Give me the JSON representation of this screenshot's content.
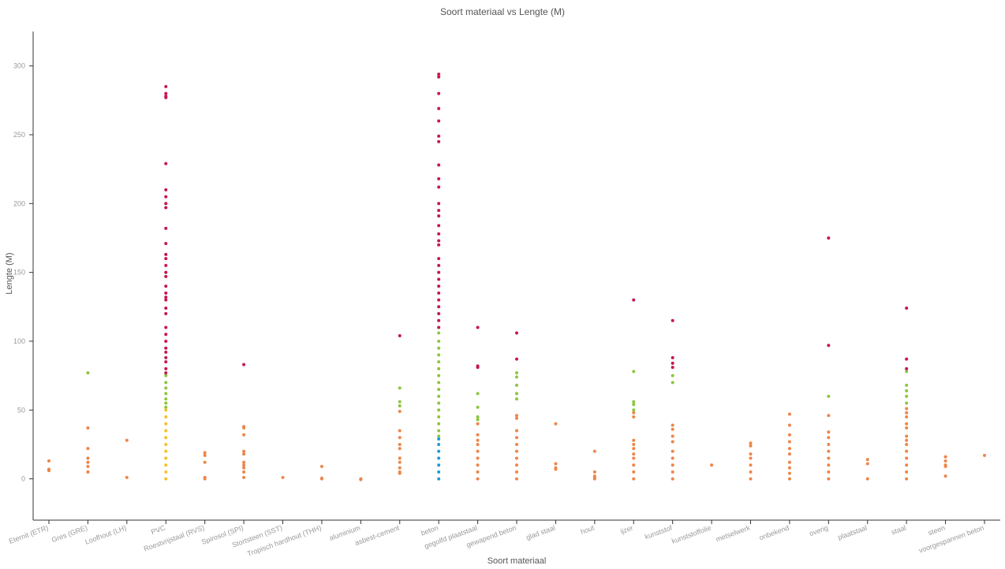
{
  "chart_data": {
    "type": "strip",
    "title": "Soort materiaal vs Lengte (M)",
    "x_label": "Soort materiaal",
    "y_label": "Lengte (M)",
    "categories": [
      "Eternit (ETR)",
      "Gres (GRE)",
      "Loofhout (LH)",
      "PVC",
      "Roestvrijstaal (RVS)",
      "Spirosol (SPI)",
      "Stortsteen (SST)",
      "Tropisch hardhout (THH)",
      "aluminium",
      "asbest-cement",
      "beton",
      "gegolfd plaatstaal",
      "gewapend beton",
      "glad staal",
      "hout",
      "ijzer",
      "kunststof",
      "kunststoffolie",
      "metselwerk",
      "onbekend",
      "overig",
      "plaatstaal",
      "staal",
      "steen",
      "voorgespannen beton"
    ],
    "ylim": [
      -30,
      325
    ],
    "yticks": [
      0,
      50,
      100,
      150,
      200,
      250,
      300
    ],
    "series": [
      {
        "color": "#ee8548",
        "values": [
          [
            13,
            7,
            6,
            6.5
          ],
          [
            37,
            22,
            15,
            12,
            9,
            5,
            5
          ],
          [
            28,
            1
          ],
          [],
          [
            19,
            17,
            12,
            1,
            0
          ],
          [
            38,
            37,
            32,
            20,
            18,
            12,
            10,
            8,
            5,
            1
          ],
          [
            1
          ],
          [
            9,
            0.5,
            0
          ],
          [
            0,
            -0.5
          ],
          [
            49,
            35,
            30,
            25,
            22,
            15,
            12,
            8,
            5,
            4
          ],
          [],
          [
            40,
            32,
            28,
            25,
            20,
            15,
            10,
            5,
            0
          ],
          [
            46,
            44,
            35,
            30,
            25,
            20,
            15,
            10,
            5,
            0
          ],
          [
            40,
            11,
            8,
            7
          ],
          [
            20,
            5,
            2,
            1,
            0
          ],
          [
            48,
            45,
            28,
            25,
            22,
            18,
            15,
            10,
            5,
            0
          ],
          [
            39,
            36,
            31,
            27,
            20,
            15,
            10,
            5,
            0
          ],
          [
            10
          ],
          [
            26,
            24,
            18,
            15,
            10,
            5,
            0
          ],
          [
            47,
            39,
            32,
            27,
            22,
            18,
            12,
            8,
            4,
            0
          ],
          [
            46,
            34,
            30,
            25,
            20,
            15,
            10,
            5,
            0
          ],
          [
            14,
            11,
            0
          ],
          [
            51,
            48,
            45,
            40,
            37,
            31,
            28,
            25,
            20,
            15,
            10,
            5,
            0
          ],
          [
            16,
            13,
            10,
            9,
            2
          ],
          [
            17
          ]
        ]
      },
      {
        "color": "#8cc63f",
        "values": [
          [],
          [
            77
          ],
          [],
          [
            75,
            70,
            66,
            62,
            58,
            55,
            52
          ],
          [],
          [],
          [],
          [],
          [],
          [
            66,
            56,
            53
          ],
          [
            106,
            100,
            95,
            90,
            85,
            80,
            75,
            70,
            65,
            60,
            55,
            50,
            45,
            40,
            35,
            31
          ],
          [
            62,
            52,
            45,
            43
          ],
          [
            77,
            74,
            68,
            62,
            58
          ],
          [],
          [],
          [
            78,
            56,
            54,
            50
          ],
          [
            75,
            70
          ],
          [],
          [],
          [],
          [
            60
          ],
          [],
          [
            78,
            68,
            64,
            60,
            55
          ],
          [],
          []
        ]
      },
      {
        "color": "#c8174a",
        "values": [
          [],
          [],
          [],
          [
            285,
            280,
            278,
            277,
            229,
            210,
            205,
            200,
            197,
            182,
            171,
            163,
            160,
            155,
            150,
            147,
            140,
            135,
            132,
            130,
            124,
            120,
            110,
            105,
            100,
            95,
            92,
            88,
            85,
            80,
            77
          ],
          [],
          [
            83
          ],
          [],
          [],
          [],
          [
            104
          ],
          [
            294,
            292,
            280,
            269,
            260,
            249,
            245,
            228,
            218,
            212,
            200,
            195,
            191,
            184,
            178,
            173,
            170,
            160,
            155,
            150,
            145,
            140,
            135,
            130,
            125,
            120,
            115,
            110
          ],
          [
            110,
            82,
            81
          ],
          [
            106,
            87
          ],
          [],
          [],
          [
            130
          ],
          [
            115,
            88,
            84,
            81
          ],
          [],
          [],
          [],
          [
            175,
            97
          ],
          [],
          [
            124,
            87,
            80
          ],
          [],
          []
        ]
      },
      {
        "color": "#f5c12a",
        "values": [
          [],
          [],
          [],
          [
            50,
            45,
            40,
            35,
            30,
            25,
            20,
            15,
            10,
            5,
            0
          ],
          [],
          [],
          [],
          [],
          [],
          [],
          [],
          [],
          [],
          [],
          [],
          [],
          [],
          [],
          [],
          [],
          [],
          [],
          [],
          [],
          []
        ]
      },
      {
        "color": "#1e9ad6",
        "values": [
          [],
          [],
          [],
          [],
          [],
          [],
          [],
          [],
          [],
          [],
          [
            29,
            25,
            20,
            15,
            10,
            5,
            0
          ],
          [],
          [],
          [],
          [],
          [],
          [],
          [],
          [],
          [],
          [],
          [],
          [],
          [],
          []
        ]
      }
    ]
  }
}
